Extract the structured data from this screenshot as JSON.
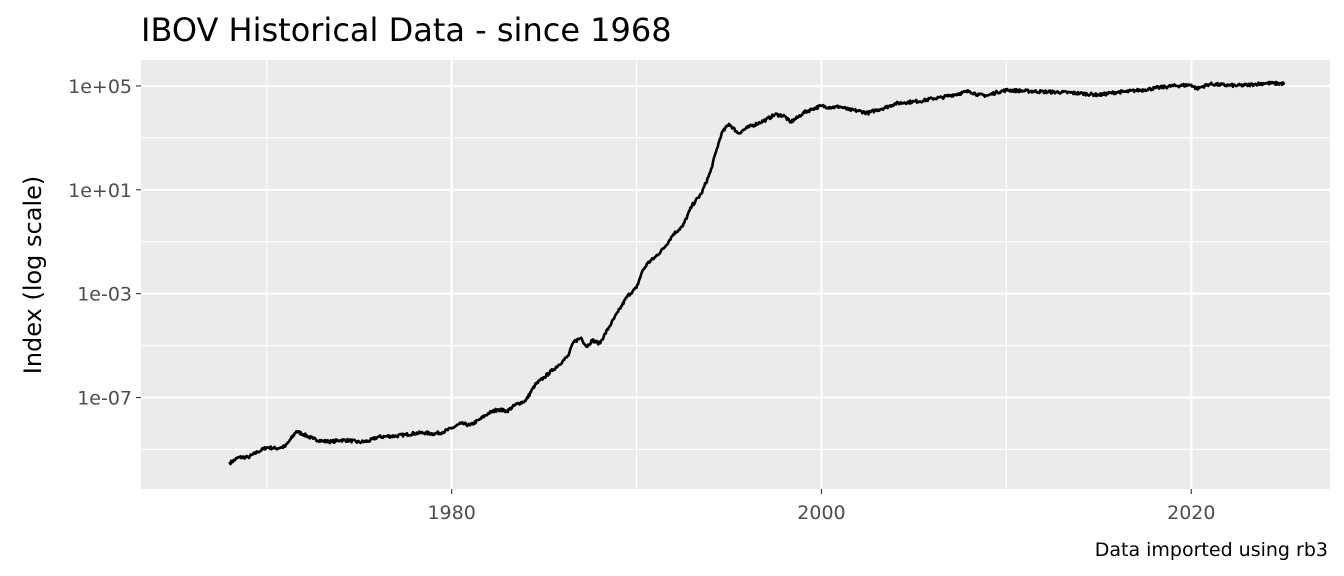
{
  "chart_data": {
    "type": "line",
    "title": "IBOV Historical Data - since 1968",
    "xlabel": "",
    "ylabel": "Index (log scale)",
    "caption": "Data imported using rb3",
    "y_scale": "log10",
    "xlim": [
      1963.2,
      2027.5
    ],
    "ylim": [
      3e-11,
      1000000.0
    ],
    "x_ticks": [
      {
        "value": 1980,
        "label": "1980"
      },
      {
        "value": 2000,
        "label": "2000"
      },
      {
        "value": 2020,
        "label": "2020"
      }
    ],
    "x_minor_ticks": [
      1970,
      1990,
      2010
    ],
    "y_ticks": [
      {
        "value": 1e-07,
        "label": "1e-07"
      },
      {
        "value": 0.001,
        "label": "1e-03"
      },
      {
        "value": 10,
        "label": "1e+01"
      },
      {
        "value": 100000.0,
        "label": "1e+05"
      }
    ],
    "y_minor_ticks": [
      1e-09,
      1e-05,
      0.1,
      1000
    ],
    "grid": true,
    "colors": {
      "panel": "#ebebeb",
      "grid": "#ffffff",
      "line": "#000000",
      "tick_text": "#4d4d4d"
    },
    "series": [
      {
        "x": [
          1968.0,
          1968.5,
          1969.0,
          1969.5,
          1970.0,
          1970.5,
          1971.0,
          1971.3,
          1971.6,
          1972.0,
          1972.5,
          1973.0,
          1973.5,
          1974.0,
          1974.5,
          1975.0,
          1975.5,
          1976.0,
          1976.5,
          1977.0,
          1977.5,
          1978.0,
          1978.5,
          1979.0,
          1979.5,
          1980.0,
          1980.5,
          1981.0,
          1981.5,
          1982.0,
          1982.5,
          1983.0,
          1983.5,
          1984.0,
          1984.5,
          1985.0,
          1985.5,
          1986.0,
          1986.3,
          1986.6,
          1987.0,
          1987.3,
          1987.6,
          1988.0,
          1988.5,
          1989.0,
          1989.5,
          1990.0,
          1990.3,
          1990.6,
          1991.0,
          1991.5,
          1992.0,
          1992.5,
          1993.0,
          1993.5,
          1994.0,
          1994.3,
          1994.6,
          1995.0,
          1995.5,
          1996.0,
          1996.5,
          1997.0,
          1997.5,
          1998.0,
          1998.3,
          1998.7,
          1999.0,
          1999.5,
          2000.0,
          2000.5,
          2001.0,
          2001.5,
          2002.0,
          2002.5,
          2003.0,
          2003.5,
          2004.0,
          2004.5,
          2005.0,
          2005.5,
          2006.0,
          2006.5,
          2007.0,
          2007.5,
          2008.0,
          2008.5,
          2009.0,
          2009.5,
          2010.0,
          2011.0,
          2012.0,
          2013.0,
          2014.0,
          2015.0,
          2016.0,
          2016.5,
          2017.0,
          2017.5,
          2018.0,
          2019.0,
          2020.0,
          2020.3,
          2020.6,
          2021.0,
          2021.5,
          2022.0,
          2022.5,
          2023.0,
          2023.5,
          2024.0,
          2024.5,
          2025.0
        ],
        "y": [
          3e-10,
          5e-10,
          5e-10,
          8e-10,
          1.2e-09,
          1.1e-09,
          1.3e-09,
          2.5e-09,
          5e-09,
          3.8e-09,
          2.6e-09,
          2.1e-09,
          2e-09,
          2.3e-09,
          2.2e-09,
          1.9e-09,
          2.1e-09,
          3e-09,
          3.2e-09,
          3.3e-09,
          3.7e-09,
          4.2e-09,
          4.4e-09,
          4e-09,
          4.6e-09,
          6.5e-09,
          1e-08,
          8.5e-09,
          1.4e-08,
          2.5e-08,
          3.5e-08,
          3e-08,
          5.5e-08,
          7.5e-08,
          3e-07,
          6e-07,
          1.2e-06,
          2.5e-06,
          4e-06,
          1.4e-05,
          2e-05,
          9e-06,
          1.6e-05,
          1.2e-05,
          5e-05,
          0.0002,
          0.0008,
          0.0017,
          0.007,
          0.015,
          0.025,
          0.06,
          0.2,
          0.4,
          2.5,
          7.0,
          50,
          300,
          1500,
          3500,
          1500,
          2500,
          3500,
          5000,
          8000,
          7000,
          4000,
          6000,
          9000,
          13000,
          17000,
          15000,
          16000,
          12000,
          11000,
          9000,
          12000,
          15000,
          21000,
          23000,
          25000,
          27000,
          33000,
          36000,
          44000,
          52000,
          63000,
          45000,
          43000,
          58000,
          69000,
          64000,
          60000,
          57000,
          52000,
          45000,
          58000,
          60000,
          67000,
          72000,
          82000,
          100000,
          110000,
          78000,
          95000,
          118000,
          112000,
          106000,
          103000,
          108000,
          118000,
          128000,
          125000,
          123000
        ]
      }
    ]
  }
}
